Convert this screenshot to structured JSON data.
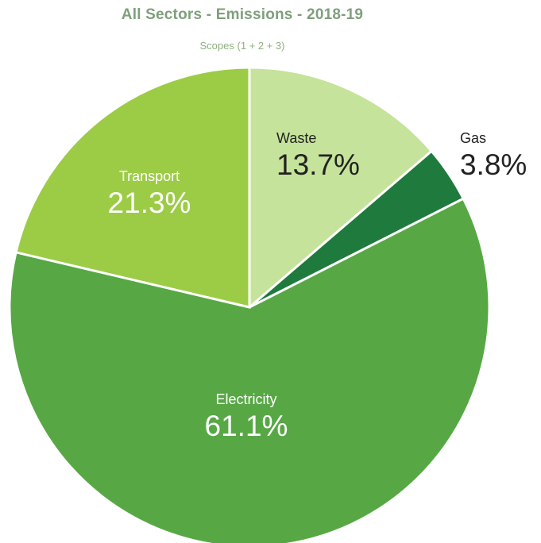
{
  "chart_data": {
    "type": "pie",
    "title": "All Sectors - Emissions - 2018-19",
    "subtitle": "Scopes (1 + 2 + 3)",
    "slices": [
      {
        "label": "Waste",
        "value": 13.7,
        "value_label": "13.7%",
        "color": "#c5e39a",
        "text_color": "#222222"
      },
      {
        "label": "Gas",
        "value": 3.8,
        "value_label": "3.8%",
        "color": "#1f7a3d",
        "text_color": "#222222"
      },
      {
        "label": "Electricity",
        "value": 61.1,
        "value_label": "61.1%",
        "color": "#57a845",
        "text_color": "#ffffff"
      },
      {
        "label": "Transport",
        "value": 21.3,
        "value_label": "21.3%",
        "color": "#9ccc45",
        "text_color": "#ffffff"
      }
    ]
  }
}
